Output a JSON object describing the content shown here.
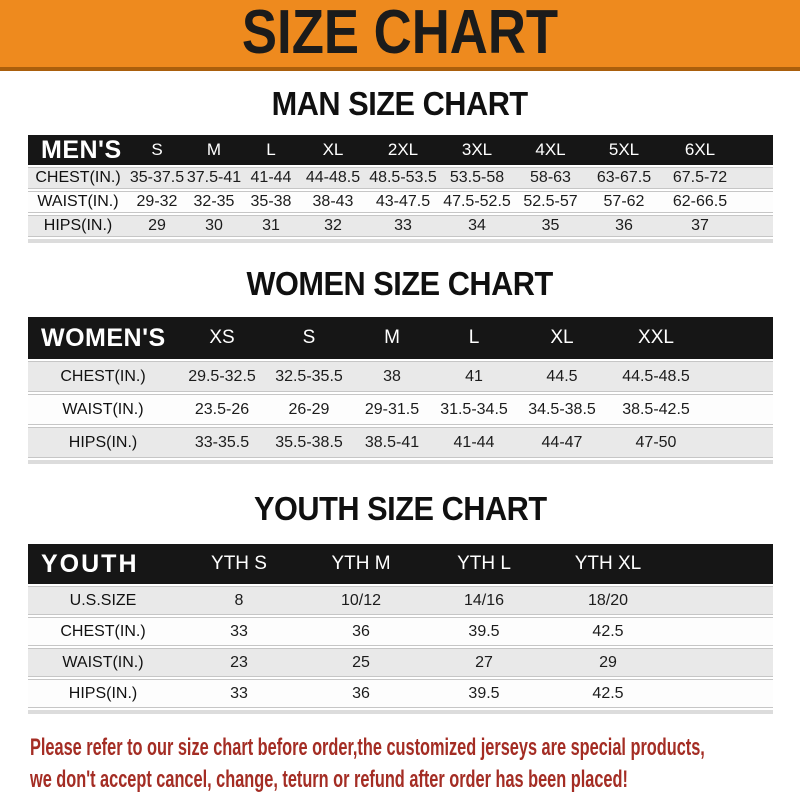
{
  "banner": {
    "title": "SIZE CHART"
  },
  "colors": {
    "banner_orange": "#ee8a1e",
    "bar_black": "#161616",
    "row_gray": "#e9e9e9",
    "footer_red": "#a42d24"
  },
  "sections": [
    {
      "heading": "MAN SIZE CHART",
      "table": {
        "label": "MEN'S",
        "columns": [
          "S",
          "M",
          "L",
          "XL",
          "2XL",
          "3XL",
          "4XL",
          "5XL",
          "6XL"
        ],
        "rows": [
          {
            "label": "CHEST(IN.)",
            "values": [
              "35-37.5",
              "37.5-41",
              "41-44",
              "44-48.5",
              "48.5-53.5",
              "53.5-58",
              "58-63",
              "63-67.5",
              "67.5-72"
            ]
          },
          {
            "label": "WAIST(IN.)",
            "values": [
              "29-32",
              "32-35",
              "35-38",
              "38-43",
              "43-47.5",
              "47.5-52.5",
              "52.5-57",
              "57-62",
              "62-66.5"
            ]
          },
          {
            "label": "HIPS(IN.)",
            "values": [
              "29",
              "30",
              "31",
              "32",
              "33",
              "34",
              "35",
              "36",
              "37"
            ]
          }
        ]
      }
    },
    {
      "heading": "WOMEN SIZE CHART",
      "table": {
        "label": "WOMEN'S",
        "columns": [
          "XS",
          "S",
          "M",
          "L",
          "XL",
          "XXL"
        ],
        "rows": [
          {
            "label": "CHEST(IN.)",
            "values": [
              "29.5-32.5",
              "32.5-35.5",
              "38",
              "41",
              "44.5",
              "44.5-48.5"
            ]
          },
          {
            "label": "WAIST(IN.)",
            "values": [
              "23.5-26",
              "26-29",
              "29-31.5",
              "31.5-34.5",
              "34.5-38.5",
              "38.5-42.5"
            ]
          },
          {
            "label": "HIPS(IN.)",
            "values": [
              "33-35.5",
              "35.5-38.5",
              "38.5-41",
              "41-44",
              "44-47",
              "47-50"
            ]
          }
        ]
      }
    },
    {
      "heading": "YOUTH SIZE CHART",
      "table": {
        "label": "YOUTH",
        "columns": [
          "YTH S",
          "YTH M",
          "YTH L",
          "YTH XL"
        ],
        "rows": [
          {
            "label": "U.S.SIZE",
            "values": [
              "8",
              "10/12",
              "14/16",
              "18/20"
            ]
          },
          {
            "label": "CHEST(IN.)",
            "values": [
              "33",
              "36",
              "39.5",
              "42.5"
            ]
          },
          {
            "label": "WAIST(IN.)",
            "values": [
              "23",
              "25",
              "27",
              "29"
            ]
          },
          {
            "label": "HIPS(IN.)",
            "values": [
              "33",
              "36",
              "39.5",
              "42.5"
            ]
          }
        ]
      }
    }
  ],
  "footer": {
    "line1": "Please refer to our size chart before order,the customized jerseys are special products,",
    "line2": "we don't accept cancel, change, teturn or refund after order has been placed!"
  }
}
